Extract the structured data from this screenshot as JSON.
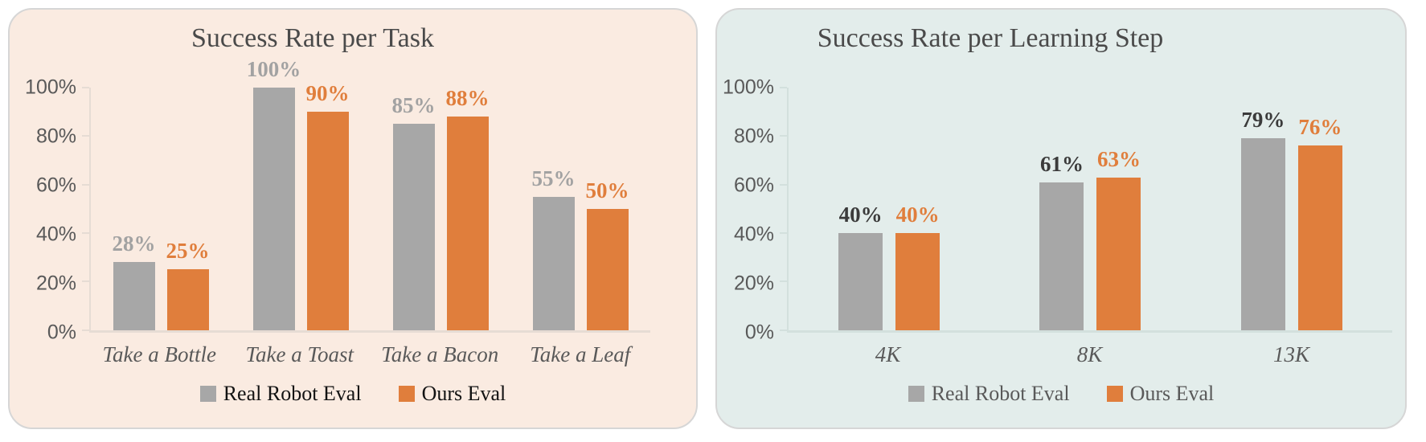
{
  "page_background": "#FFFFFF",
  "chart_data": [
    {
      "type": "bar",
      "title": "Success Rate per Task",
      "categories": [
        "Take a Bottle",
        "Take a Toast",
        "Take a Bacon",
        "Take a Leaf"
      ],
      "series": [
        {
          "name": "Real Robot Eval",
          "values": [
            28,
            100,
            85,
            55
          ],
          "bar_color": "#A7A7A7",
          "value_label_color": "#A2A2A2"
        },
        {
          "name": "Ours Eval",
          "values": [
            25,
            90,
            88,
            50
          ],
          "bar_color": "#E07E3C",
          "value_label_color": "#E07E3C"
        }
      ],
      "value_suffix": "%",
      "xlabel": "",
      "ylabel": "",
      "ylim": [
        0,
        100
      ],
      "yticks": [
        0,
        20,
        40,
        60,
        80,
        100
      ],
      "ytick_labels": [
        "0%",
        "20%",
        "40%",
        "60%",
        "80%",
        "100%"
      ],
      "grid": false,
      "legend_position": "bottom-center",
      "panel_background": "#FAEBE1",
      "panel_border_color": "#D6D6D6",
      "title_color": "#4A4A4A",
      "axis_text_color": "#595959",
      "axis_line_color": "#E6DCD4",
      "legend_text_color": "#121212"
    },
    {
      "type": "bar",
      "title": "Success Rate per Learning Step",
      "categories": [
        "4K",
        "8K",
        "13K"
      ],
      "series": [
        {
          "name": "Real Robot Eval",
          "values": [
            40,
            61,
            79
          ],
          "bar_color": "#A7A7A7",
          "value_label_color": "#3B3B3B"
        },
        {
          "name": "Ours Eval",
          "values": [
            40,
            63,
            76
          ],
          "bar_color": "#E07E3C",
          "value_label_color": "#E07E3C"
        }
      ],
      "value_suffix": "%",
      "xlabel": "",
      "ylabel": "",
      "ylim": [
        0,
        100
      ],
      "yticks": [
        0,
        20,
        40,
        60,
        80,
        100
      ],
      "ytick_labels": [
        "0%",
        "20%",
        "40%",
        "60%",
        "80%",
        "100%"
      ],
      "grid": false,
      "legend_position": "bottom-center",
      "panel_background": "#E3EDEB",
      "panel_border_color": "#D6D6D6",
      "title_color": "#4A4A4A",
      "axis_text_color": "#595959",
      "axis_line_color": "#D3E0DD",
      "legend_text_color": "#595959"
    }
  ]
}
